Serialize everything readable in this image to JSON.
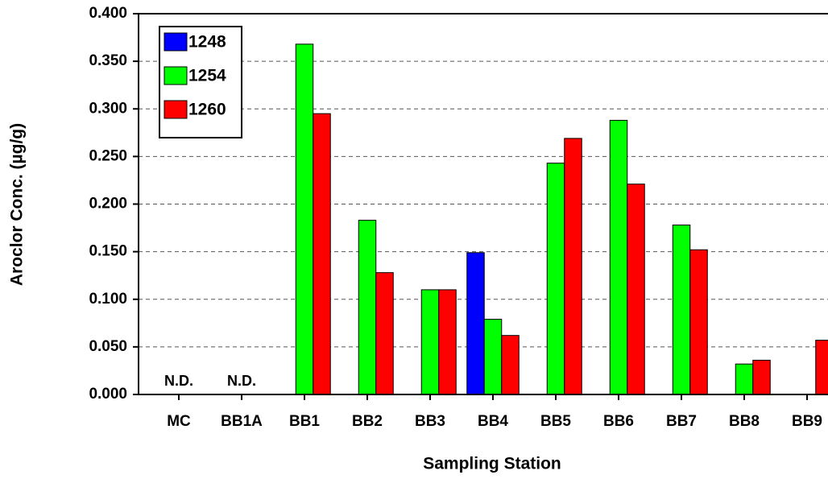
{
  "chart_data": {
    "type": "bar",
    "x_label": "Sampling Station",
    "y_label": "Aroclor Conc. (µg/g)",
    "categories": [
      "MC",
      "BB1A",
      "BB1",
      "BB2",
      "BB3",
      "BB4",
      "BB5",
      "BB6",
      "BB7",
      "BB8",
      "BB9"
    ],
    "series": [
      {
        "name": "1248",
        "color": "#0000ff",
        "values": [
          null,
          null,
          null,
          null,
          null,
          0.149,
          null,
          null,
          null,
          null,
          null
        ]
      },
      {
        "name": "1254",
        "color": "#00ff00",
        "values": [
          null,
          null,
          0.368,
          0.183,
          0.11,
          0.079,
          0.243,
          0.288,
          0.178,
          0.032,
          null
        ]
      },
      {
        "name": "1260",
        "color": "#ff0000",
        "values": [
          null,
          null,
          0.295,
          0.128,
          0.11,
          0.062,
          0.269,
          0.221,
          0.152,
          0.036,
          0.057
        ]
      }
    ],
    "annotations": [
      {
        "text": "N.D.",
        "category": "MC"
      },
      {
        "text": "N.D.",
        "category": "BB1A"
      }
    ],
    "ylim": [
      0,
      0.4
    ],
    "yticks": [
      {
        "value": 0,
        "label": "0.000"
      },
      {
        "value": 0.05,
        "label": "0.050"
      },
      {
        "value": 0.1,
        "label": "0.100"
      },
      {
        "value": 0.15,
        "label": "0.150"
      },
      {
        "value": 0.2,
        "label": "0.200"
      },
      {
        "value": 0.25,
        "label": "0.250"
      },
      {
        "value": 0.3,
        "label": "0.300"
      },
      {
        "value": 0.35,
        "label": "0.350"
      },
      {
        "value": 0.4,
        "label": "0.400"
      }
    ],
    "grid": true,
    "legend": "upper-left"
  }
}
